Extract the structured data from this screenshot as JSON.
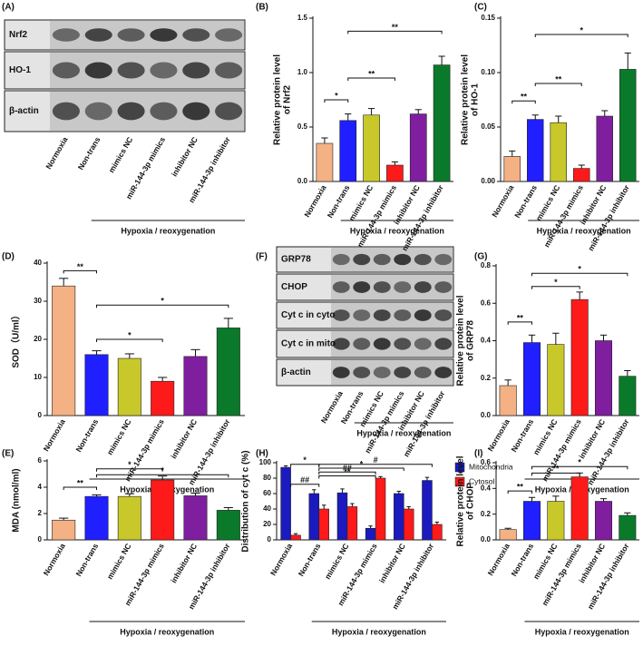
{
  "blots": [
    {
      "label": "(A)",
      "rows": [
        "Nrf2",
        "HO-1",
        "β-actin"
      ],
      "categories": [
        "Normoxia",
        "Non-trans",
        "mimics NC",
        "miR-144-3p mimics",
        "inhibitor NC",
        "miR-144-3p inhibitor"
      ],
      "group_label": "Hypoxia / reoxygenation"
    },
    {
      "label": "(F)",
      "rows": [
        "GRP78",
        "CHOP",
        "Cyt c in cyto",
        "Cyt c in mito",
        "β-actin"
      ],
      "categories": [
        "Normoxia",
        "Non-trans",
        "mimics NC",
        "miR-144-3p mimics",
        "inhibitor NC",
        "miR-144-3p inhibitor"
      ],
      "group_label": "Hypoxia / reoxygenation"
    }
  ],
  "chart_data": [
    {
      "type": "bar",
      "label": "(B)",
      "ylabel": [
        "Relative protein level",
        "of Nrf2"
      ],
      "categories": [
        "Normoxia",
        "Non-trans",
        "mimics NC",
        "miR-144-3p mimics",
        "inhibitor NC",
        "miR-144-3p inhibitor"
      ],
      "values": [
        0.35,
        0.56,
        0.61,
        0.15,
        0.62,
        1.07
      ],
      "errors": [
        0.05,
        0.06,
        0.06,
        0.03,
        0.04,
        0.08
      ],
      "colors": [
        "#f4b183",
        "#1f1fff",
        "#c8c82a",
        "#ff1a1a",
        "#7f1fa0",
        "#0a7a2a"
      ],
      "group_label": "Hypoxia / reoxygenation",
      "ylim": [
        0,
        1.5
      ],
      "yticks": [
        {
          "value": 0,
          "label": "0.0"
        },
        {
          "value": 0.5,
          "label": "0.5"
        },
        {
          "value": 1,
          "label": "1.0"
        },
        {
          "value": 1.5,
          "label": "1.5"
        }
      ],
      "annotations": [
        {
          "text": "*",
          "from": 0,
          "to": 1,
          "y": 0.75
        },
        {
          "text": "**",
          "from": 1,
          "to": 3,
          "y": 0.95
        },
        {
          "text": "**",
          "from": 1,
          "to": 5,
          "y": 1.38
        }
      ]
    },
    {
      "type": "bar",
      "label": "(C)",
      "ylabel": [
        "Relative protein level",
        "of HO-1"
      ],
      "categories": [
        "Normoxia",
        "Non-trans",
        "mimics NC",
        "miR-144-3p mimics",
        "inhibitor NC",
        "miR-144-3p inhibitor"
      ],
      "values": [
        0.023,
        0.057,
        0.054,
        0.012,
        0.06,
        0.103
      ],
      "errors": [
        0.005,
        0.004,
        0.006,
        0.003,
        0.005,
        0.015
      ],
      "colors": [
        "#f4b183",
        "#1f1fff",
        "#c8c82a",
        "#ff1a1a",
        "#7f1fa0",
        "#0a7a2a"
      ],
      "group_label": "Hypoxia / reoxygenation",
      "ylim": [
        0,
        0.15
      ],
      "yticks": [
        {
          "value": 0,
          "label": "0.00"
        },
        {
          "value": 0.05,
          "label": "0.05"
        },
        {
          "value": 0.1,
          "label": "0.10"
        },
        {
          "value": 0.15,
          "label": "0.15"
        }
      ],
      "annotations": [
        {
          "text": "**",
          "from": 0,
          "to": 1,
          "y": 0.074
        },
        {
          "text": "**",
          "from": 1,
          "to": 3,
          "y": 0.09
        },
        {
          "text": "*",
          "from": 1,
          "to": 5,
          "y": 0.135
        }
      ]
    },
    {
      "type": "bar",
      "label": "(D)",
      "ylabel": [
        "SOD（U/ml）"
      ],
      "categories": [
        "Normoxia",
        "Non-trans",
        "mimics NC",
        "miR-144-3p mimics",
        "inhibitor NC",
        "miR-144-3p inhibitor"
      ],
      "values": [
        34,
        16,
        15,
        9,
        15.5,
        23
      ],
      "errors": [
        2,
        1,
        1.2,
        1,
        1.8,
        2.5
      ],
      "colors": [
        "#f4b183",
        "#1f1fff",
        "#c8c82a",
        "#ff1a1a",
        "#7f1fa0",
        "#0a7a2a"
      ],
      "group_label": "Hypoxia / reoxygenation",
      "ylim": [
        0,
        40
      ],
      "yticks": [
        0,
        10,
        20,
        30,
        40
      ],
      "annotations": [
        {
          "text": "**",
          "from": 0,
          "to": 1,
          "y": 38
        },
        {
          "text": "*",
          "from": 1,
          "to": 3,
          "y": 20
        },
        {
          "text": "*",
          "from": 1,
          "to": 5,
          "y": 29
        }
      ]
    },
    {
      "type": "bar",
      "label": "(G)",
      "ylabel": [
        "Relative protein level",
        "of GRP78"
      ],
      "categories": [
        "Normoxia",
        "Non-trans",
        "mimics NC",
        "miR-144-3p mimics",
        "inhibitor NC",
        "miR-144-3p inhibitor"
      ],
      "values": [
        0.16,
        0.39,
        0.38,
        0.62,
        0.4,
        0.21
      ],
      "errors": [
        0.03,
        0.04,
        0.06,
        0.04,
        0.03,
        0.03
      ],
      "colors": [
        "#f4b183",
        "#1f1fff",
        "#c8c82a",
        "#ff1a1a",
        "#7f1fa0",
        "#0a7a2a"
      ],
      "group_label": "Hypoxia / reoxygenation",
      "ylim": [
        0,
        0.8
      ],
      "yticks": [
        {
          "value": 0,
          "label": "0.0"
        },
        {
          "value": 0.2,
          "label": "0.2"
        },
        {
          "value": 0.4,
          "label": "0.4"
        },
        {
          "value": 0.6,
          "label": "0.6"
        },
        {
          "value": 0.8,
          "label": "0.8"
        }
      ],
      "annotations": [
        {
          "text": "**",
          "from": 0,
          "to": 1,
          "y": 0.5
        },
        {
          "text": "*",
          "from": 1,
          "to": 3,
          "y": 0.69
        },
        {
          "text": "*",
          "from": 1,
          "to": 5,
          "y": 0.76
        }
      ]
    },
    {
      "type": "bar",
      "label": "(E)",
      "ylabel": [
        "MDA (nmol/ml)"
      ],
      "categories": [
        "Normoxia",
        "Non-trans",
        "mimics NC",
        "miR-144-3p mimics",
        "inhibitor NC",
        "miR-144-3p inhibitor"
      ],
      "values": [
        1.5,
        3.3,
        3.3,
        4.55,
        3.35,
        2.25
      ],
      "errors": [
        0.15,
        0.12,
        0.2,
        0.3,
        0.2,
        0.2
      ],
      "colors": [
        "#f4b183",
        "#1f1fff",
        "#c8c82a",
        "#ff1a1a",
        "#7f1fa0",
        "#0a7a2a"
      ],
      "group_label": "Hypoxia / reoxygenation",
      "ylim": [
        0,
        6
      ],
      "yticks": [
        0,
        2,
        4,
        6
      ],
      "annotations": [
        {
          "text": "**",
          "from": 0,
          "to": 1,
          "y": 4
        },
        {
          "text": "*",
          "from": 1,
          "to": 3,
          "y": 5.4
        },
        {
          "text": "*",
          "from": 1,
          "to": 5,
          "y": 4.95
        }
      ]
    },
    {
      "type": "grouped_bar",
      "label": "(H)",
      "ylabel": [
        "Distribution of cyt c (%)"
      ],
      "categories": [
        "Normoxia",
        "Non-trans",
        "mimics NC",
        "miR-144-3p mimics",
        "inhibitor NC",
        "miR-144-3p inhibitor"
      ],
      "series": [
        {
          "name": "Mitochondria",
          "color": "#1a1abf",
          "values": [
            94,
            60,
            61,
            15,
            60,
            77
          ],
          "errors": [
            2,
            5,
            5,
            3,
            3,
            4
          ]
        },
        {
          "name": "Cytosol",
          "color": "#ff1a1a",
          "values": [
            6,
            40,
            43,
            80,
            40,
            20
          ],
          "errors": [
            2,
            5,
            4,
            2,
            3,
            3
          ]
        }
      ],
      "legend": "upper right",
      "group_label": "Hypoxia / reoxygenation",
      "ylim": [
        0,
        100
      ],
      "yticks": [
        0,
        20,
        40,
        60,
        80,
        100
      ],
      "annotations": [
        {
          "text": "*",
          "from": 0,
          "to": 1,
          "y": 98
        },
        {
          "text": "##",
          "from": 0,
          "to": 1,
          "y": 72
        },
        {
          "text": "**",
          "from": 1,
          "to": 3,
          "y": 83
        },
        {
          "text": "##",
          "from": 1,
          "to": 3,
          "y": 88
        },
        {
          "text": "*",
          "from": 1,
          "to": 4,
          "y": 93
        },
        {
          "text": "#",
          "from": 1,
          "to": 5,
          "y": 98
        }
      ]
    },
    {
      "type": "bar",
      "label": "(I)",
      "ylabel": [
        "Relative protein level",
        "of CHOP"
      ],
      "categories": [
        "Normoxia",
        "Non-trans",
        "mimics NC",
        "miR-144-3p mimics",
        "inhibitor NC",
        "miR-144-3p inhibitor"
      ],
      "values": [
        0.08,
        0.3,
        0.3,
        0.49,
        0.3,
        0.19
      ],
      "errors": [
        0.01,
        0.03,
        0.04,
        0.03,
        0.02,
        0.02
      ],
      "colors": [
        "#f4b183",
        "#1f1fff",
        "#c8c82a",
        "#ff1a1a",
        "#7f1fa0",
        "#0a7a2a"
      ],
      "group_label": "Hypoxia / reoxygenation",
      "ylim": [
        0,
        0.6
      ],
      "yticks": [
        {
          "value": 0,
          "label": "0.0"
        },
        {
          "value": 0.2,
          "label": "0.2"
        },
        {
          "value": 0.4,
          "label": "0.4"
        },
        {
          "value": 0.6,
          "label": "0.6"
        }
      ],
      "annotations": [
        {
          "text": "**",
          "from": 0,
          "to": 1,
          "y": 0.38
        },
        {
          "text": "**",
          "from": 1,
          "to": 3,
          "y": 0.52
        },
        {
          "text": "*",
          "from": 1,
          "to": 5,
          "y": 0.57
        }
      ]
    }
  ]
}
